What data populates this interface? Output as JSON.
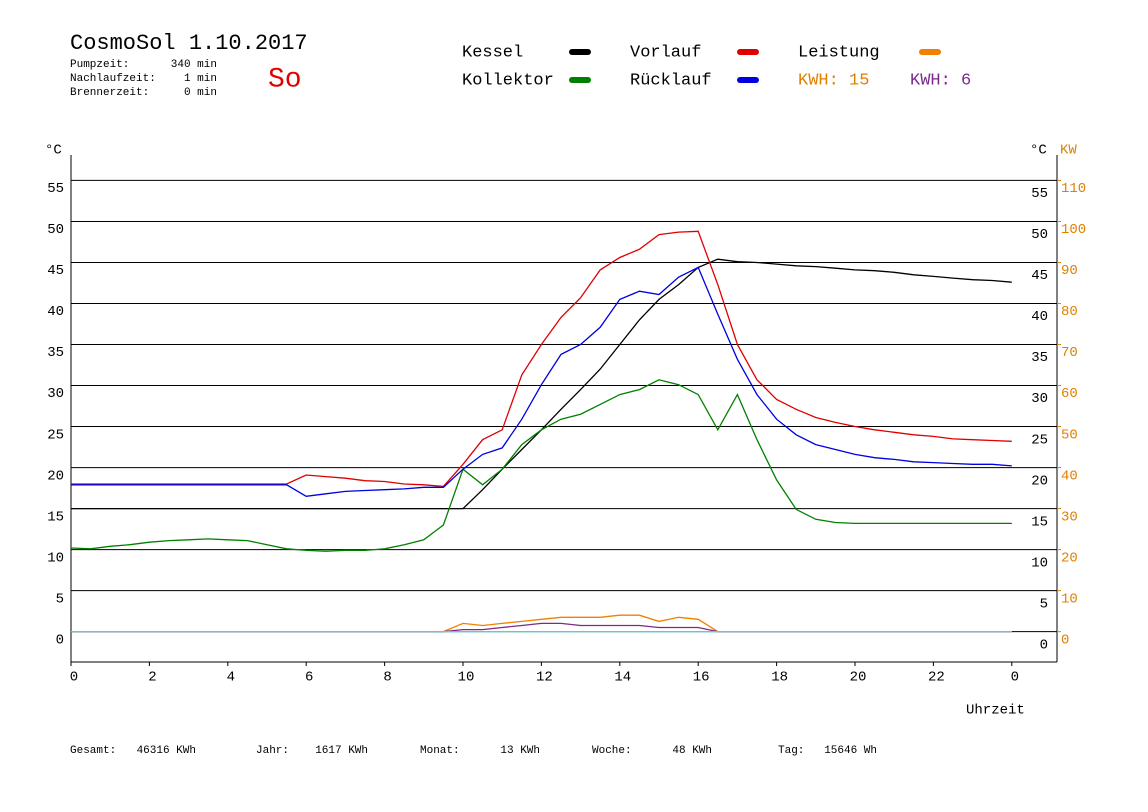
{
  "header": {
    "title": "CosmoSol 1.10.2017",
    "day": "So",
    "stats": [
      [
        "Pumpzeit:",
        "340 min"
      ],
      [
        "Nachlaufzeit:",
        "1 min"
      ],
      [
        "Brennerzeit:",
        "0 min"
      ]
    ]
  },
  "footer": [
    [
      "Gesamt:",
      "46316 KWh"
    ],
    [
      "Jahr:",
      "1617 KWh"
    ],
    [
      "Monat:",
      "13 KWh"
    ],
    [
      "Woche:",
      "48 KWh"
    ],
    [
      "Tag:",
      "15646 Wh"
    ]
  ],
  "chart_data": {
    "type": "line",
    "y_label": "°C",
    "y2_label": [
      "°C",
      "KW"
    ],
    "x_label": "Uhrzeit",
    "annotations": [
      {
        "text": "KWH: 15",
        "color": "#e08000"
      },
      {
        "text": "KWH: 6",
        "color": "#7a2a8a"
      }
    ],
    "x": [
      0,
      0.5,
      1,
      1.5,
      2,
      2.5,
      3,
      3.5,
      4,
      4.5,
      5,
      5.5,
      6,
      6.5,
      7,
      7.5,
      8,
      8.5,
      9,
      9.5,
      10,
      10.5,
      11,
      11.5,
      12,
      12.5,
      13,
      13.5,
      14,
      14.5,
      15,
      15.5,
      16,
      16.5,
      17,
      17.5,
      18,
      18.5,
      19,
      19.5,
      20,
      20.5,
      21,
      21.5,
      22,
      22.5,
      23,
      23.5,
      24
    ],
    "xlim": [
      0,
      25
    ],
    "xticks": [
      0,
      2,
      4,
      6,
      8,
      10,
      12,
      14,
      16,
      18,
      20,
      22,
      {
        "value": 24,
        "label": "0"
      }
    ],
    "ylim": [
      -3.7,
      58.1
    ],
    "yticks": [
      0,
      5,
      10,
      15,
      20,
      25,
      30,
      35,
      40,
      45,
      50,
      55
    ],
    "y2lim": [
      -7.4,
      116.2
    ],
    "y2ticks": [
      0,
      10,
      20,
      30,
      40,
      50,
      60,
      70,
      80,
      90,
      100,
      110
    ],
    "grid": true,
    "series": [
      {
        "name": "Kessel",
        "color": "#000000",
        "values": [
          15,
          15,
          15,
          15,
          15,
          15,
          15,
          15,
          15,
          15,
          15,
          15,
          15,
          15,
          15,
          15,
          15,
          15,
          15,
          15,
          15,
          17.3,
          19.8,
          22.2,
          24.6,
          27.1,
          29.5,
          32,
          35,
          38,
          40.5,
          42.3,
          44.4,
          45.4,
          45.1,
          45,
          44.8,
          44.6,
          44.5,
          44.3,
          44.1,
          44,
          43.8,
          43.5,
          43.3,
          43.1,
          42.9,
          42.8,
          42.6
        ]
      },
      {
        "name": "Kollektor",
        "color": "#008000",
        "values": [
          10.2,
          10.1,
          10.4,
          10.6,
          10.9,
          11.1,
          11.2,
          11.3,
          11.2,
          11.1,
          10.6,
          10.1,
          9.9,
          9.8,
          9.9,
          9.9,
          10.1,
          10.6,
          11.2,
          13,
          19.8,
          17.9,
          19.8,
          22.8,
          24.6,
          25.9,
          26.5,
          27.7,
          28.9,
          29.5,
          30.7,
          30.1,
          28.9,
          24.6,
          28.9,
          23.4,
          18.5,
          14.9,
          13.7,
          13.3,
          13.2,
          13.2,
          13.2,
          13.2,
          13.2,
          13.2,
          13.2,
          13.2,
          13.2
        ]
      },
      {
        "name": "Vorlauf",
        "color": "#e00000",
        "values": [
          18,
          18,
          18,
          18,
          18,
          18,
          18,
          18,
          18,
          18,
          18,
          18,
          19.1,
          18.9,
          18.7,
          18.4,
          18.3,
          18,
          17.9,
          17.7,
          20.4,
          23.4,
          24.6,
          31.3,
          35,
          38.3,
          40.7,
          44.1,
          45.6,
          46.6,
          48.4,
          48.7,
          48.8,
          42.3,
          35,
          30.7,
          28.3,
          27.1,
          26.1,
          25.5,
          25,
          24.6,
          24.3,
          24,
          23.8,
          23.5,
          23.4,
          23.3,
          23.2
        ]
      },
      {
        "name": "Rücklauf",
        "color": "#0000e0",
        "values": [
          17.9,
          17.9,
          17.9,
          17.9,
          17.9,
          17.9,
          17.9,
          17.9,
          17.9,
          17.9,
          17.9,
          17.9,
          16.5,
          16.8,
          17.1,
          17.2,
          17.3,
          17.4,
          17.6,
          17.6,
          19.8,
          21.6,
          22.4,
          25.9,
          30.1,
          33.8,
          35,
          37.1,
          40.5,
          41.5,
          41.1,
          43.2,
          44.4,
          38.7,
          33.2,
          28.9,
          25.9,
          24,
          22.8,
          22.2,
          21.6,
          21.2,
          21,
          20.7,
          20.6,
          20.5,
          20.4,
          20.4,
          20.2
        ]
      },
      {
        "name": "Leistung",
        "color": "#f08000",
        "axis": "y2",
        "values": [
          0,
          0,
          0,
          0,
          0,
          0,
          0,
          0,
          0,
          0,
          0,
          0,
          0,
          0,
          0,
          0,
          0,
          0,
          0,
          0,
          2,
          1.5,
          2,
          2.5,
          3,
          3.5,
          3.5,
          3.5,
          4,
          4,
          2.5,
          3.5,
          3,
          0,
          0,
          0,
          0,
          0,
          0,
          0,
          0,
          0,
          0,
          0,
          0,
          0,
          0,
          0,
          0
        ]
      },
      {
        "color": "#7a2a8a",
        "axis": "y2",
        "values": [
          0,
          0,
          0,
          0,
          0,
          0,
          0,
          0,
          0,
          0,
          0,
          0,
          0,
          0,
          0,
          0,
          0,
          0,
          0,
          0,
          0.5,
          0.5,
          1,
          1.5,
          2,
          2,
          1.5,
          1.5,
          1.5,
          1.5,
          1,
          1,
          1,
          0,
          0,
          0,
          0,
          0,
          0,
          0,
          0,
          0,
          0,
          0,
          0,
          0,
          0,
          0,
          0
        ]
      },
      {
        "color": "#40d8e0",
        "axis": "y2",
        "values": [
          0,
          0,
          0,
          0,
          0,
          0,
          0,
          0,
          0,
          0,
          0,
          0,
          0,
          0,
          0,
          0,
          0,
          0,
          0,
          0,
          0,
          0,
          0,
          0,
          0,
          0,
          0,
          0,
          0,
          0,
          0,
          0,
          0,
          0,
          0,
          0,
          0,
          0,
          0,
          0,
          0,
          0,
          0,
          0,
          0,
          0,
          0,
          0,
          0
        ]
      }
    ]
  }
}
